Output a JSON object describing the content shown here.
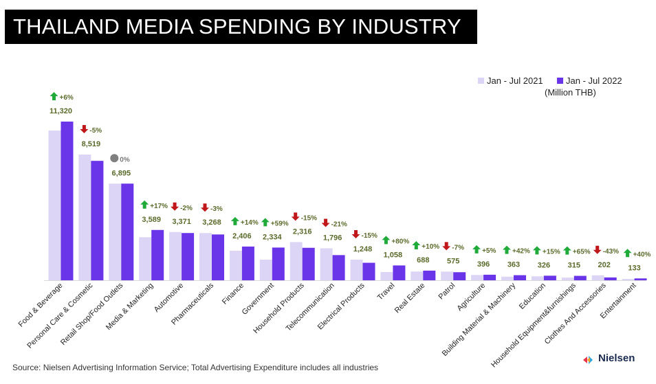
{
  "title": "THAILAND MEDIA SPENDING BY INDUSTRY",
  "legend": {
    "series_2021": "Jan - Jul 2021",
    "series_2022": "Jan - Jul 2022",
    "unit": "(Million THB)"
  },
  "source": "Source: Nielsen Advertising Information Service; Total Advertising Expenditure includes all industries",
  "logo": {
    "text": "Nielsen"
  },
  "colors": {
    "series_2021": "#dcd5f5",
    "series_2022": "#6a35e8",
    "up": "#1faa3a",
    "down": "#c0171a",
    "flat": "#808080",
    "value_label": "#5a6a2a"
  },
  "chart_data": {
    "type": "bar",
    "title": "THAILAND MEDIA SPENDING BY INDUSTRY",
    "unit": "Million THB",
    "categories": [
      "Food & Beverage",
      "Personal Care & Cosmetic",
      "Retail Shop/Food Outlets",
      "Media & Marketing",
      "Automotive",
      "Pharmaceuticals",
      "Finance",
      "Government",
      "Household Products",
      "Telecommunication",
      "Electrical Products",
      "Travel",
      "Real Estate",
      "Patrol",
      "Agriculture",
      "Building Material & Machinery",
      "Education",
      "Household Equipment&furnishings",
      "Clothes And Accessories",
      "Entertainment"
    ],
    "series": [
      {
        "name": "Jan - Jul 2021",
        "values": [
          10680,
          8970,
          6895,
          3070,
          3440,
          3370,
          2110,
          1470,
          2725,
          2280,
          1470,
          590,
          625,
          620,
          377,
          256,
          283,
          190,
          355,
          95
        ]
      },
      {
        "name": "Jan - Jul 2022",
        "values": [
          11320,
          8519,
          6895,
          3589,
          3371,
          3268,
          2406,
          2334,
          2316,
          1796,
          1248,
          1058,
          688,
          575,
          396,
          363,
          326,
          315,
          202,
          133
        ]
      }
    ],
    "data_labels": [
      "11,320",
      "8,519",
      "6,895",
      "3,589",
      "3,371",
      "3,268",
      "2,406",
      "2,334",
      "2,316",
      "1,796",
      "1,248",
      "1,058",
      "688",
      "575",
      "396",
      "363",
      "326",
      "315",
      "202",
      "133"
    ],
    "changes": [
      {
        "text": "+6%",
        "dir": "up"
      },
      {
        "text": "-5%",
        "dir": "down"
      },
      {
        "text": "0%",
        "dir": "flat"
      },
      {
        "text": "+17%",
        "dir": "up"
      },
      {
        "text": "-2%",
        "dir": "down"
      },
      {
        "text": "-3%",
        "dir": "down"
      },
      {
        "text": "+14%",
        "dir": "up"
      },
      {
        "text": "+59%",
        "dir": "up"
      },
      {
        "text": "-15%",
        "dir": "down"
      },
      {
        "text": "-21%",
        "dir": "down"
      },
      {
        "text": "-15%",
        "dir": "down"
      },
      {
        "text": "+80%",
        "dir": "up"
      },
      {
        "text": "+10%",
        "dir": "up"
      },
      {
        "text": "-7%",
        "dir": "down"
      },
      {
        "text": "+5%",
        "dir": "up"
      },
      {
        "text": "+42%",
        "dir": "up"
      },
      {
        "text": "+15%",
        "dir": "up"
      },
      {
        "text": "+65%",
        "dir": "up"
      },
      {
        "text": "-43%",
        "dir": "down"
      },
      {
        "text": "+40%",
        "dir": "up"
      }
    ],
    "ylim": [
      0,
      11320
    ],
    "legend_position": "top-right",
    "grid": false
  }
}
